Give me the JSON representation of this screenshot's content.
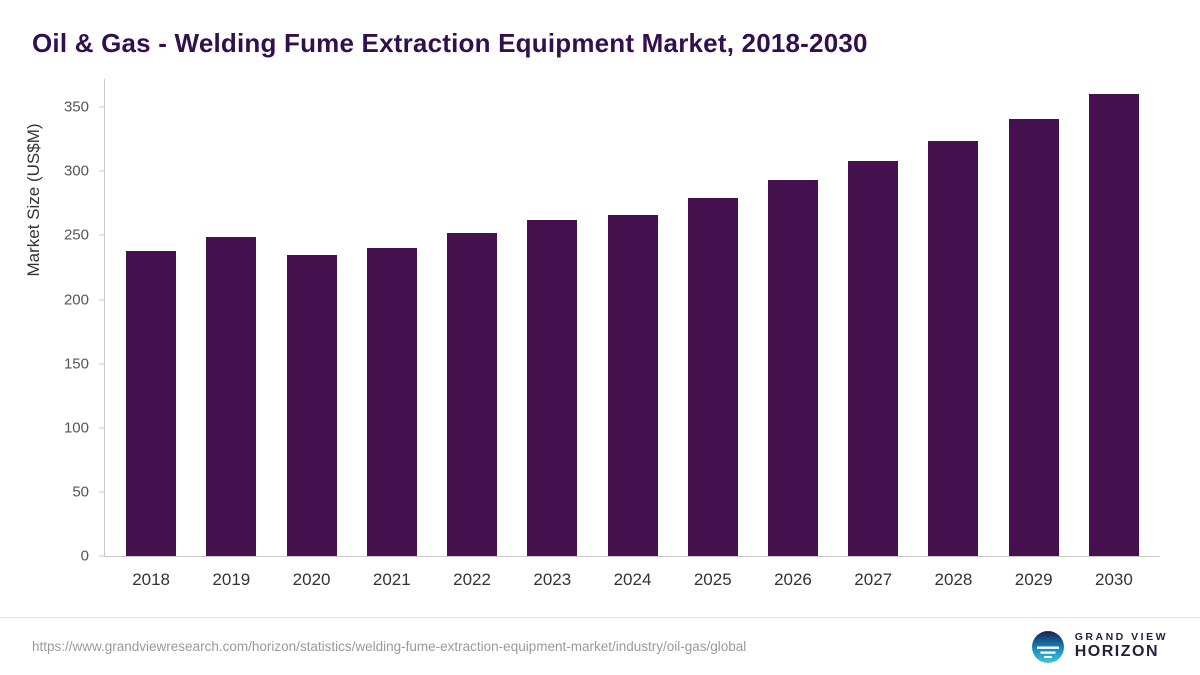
{
  "title": "Oil & Gas - Welding Fume Extraction Equipment Market, 2018-2030",
  "colors": {
    "bar": "#45104e",
    "title": "#33104d",
    "axis": "#c9c9c9",
    "tick_text": "#555555"
  },
  "chart_data": {
    "type": "bar",
    "title": "Oil & Gas - Welding Fume Extraction Equipment Market, 2018-2030",
    "categories": [
      "2018",
      "2019",
      "2020",
      "2021",
      "2022",
      "2023",
      "2024",
      "2025",
      "2026",
      "2027",
      "2028",
      "2029",
      "2030"
    ],
    "values": [
      238,
      249,
      235,
      240,
      252,
      262,
      266,
      279,
      293,
      308,
      324,
      341,
      360
    ],
    "xlabel": "",
    "ylabel": "Market Size (US$M)",
    "ylim": [
      0,
      372
    ],
    "yticks": [
      0,
      50,
      100,
      150,
      200,
      250,
      300,
      350
    ],
    "grid": false,
    "legend": "none"
  },
  "footer": {
    "source_url": "https://www.grandviewresearch.com/horizon/statistics/welding-fume-extraction-equipment-market/industry/oil-gas/global",
    "logo_top": "GRAND VIEW",
    "logo_bottom": "HORIZON"
  }
}
